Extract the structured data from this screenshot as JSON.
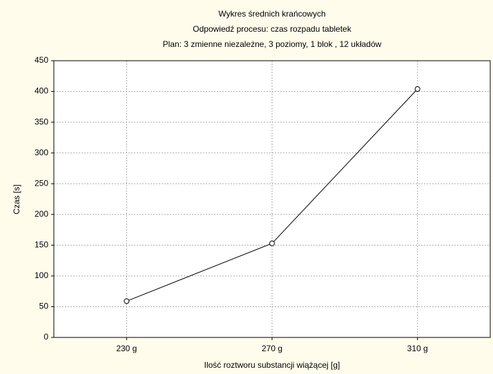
{
  "chart_data": {
    "type": "line",
    "title": [
      "Wykres średnich krańcowych",
      "Odpowiedź procesu: czas rozpadu tabletek",
      "Plan: 3 zmienne niezależne, 3 poziomy, 1 blok , 12 układów"
    ],
    "x_label": "Ilość roztworu substancji wiążącej [g]",
    "y_label": "Czas [s]",
    "categories": [
      "230 g",
      "270 g",
      "310 g"
    ],
    "series": [
      {
        "name": "Czas [s]",
        "color": "#000000",
        "values": [
          59,
          153,
          404
        ]
      }
    ],
    "ylim": [
      0,
      450
    ],
    "yticks": [
      0,
      50,
      100,
      150,
      200,
      250,
      300,
      350,
      400,
      450
    ],
    "grid": true
  }
}
